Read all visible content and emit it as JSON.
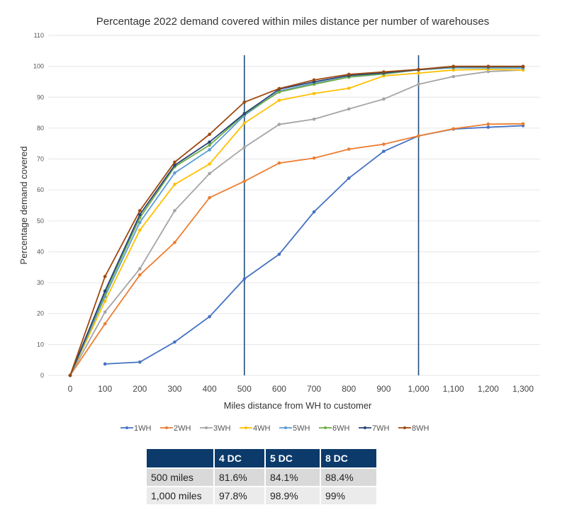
{
  "chart_data": {
    "type": "line",
    "title": "Percentage 2022 demand covered within miles distance per number of warehouses",
    "xlabel": "Miles distance from WH to customer",
    "ylabel": "Percentage demand covered",
    "x": [
      0,
      100,
      200,
      300,
      400,
      500,
      600,
      700,
      800,
      900,
      1000,
      1100,
      1200,
      1300
    ],
    "x_tick_labels": [
      "0",
      "100",
      "200",
      "300",
      "400",
      "500",
      "600",
      "700",
      "800",
      "900",
      "1,000",
      "1,100",
      "1,200",
      "1,300"
    ],
    "ylim": [
      0,
      110
    ],
    "y_ticks": [
      0,
      10,
      20,
      30,
      40,
      50,
      60,
      70,
      80,
      90,
      100,
      110
    ],
    "grid": "horizontal",
    "legend": "bottom",
    "reference_lines_x": [
      500,
      1000
    ],
    "reference_line_color": "#1f4e79",
    "series": [
      {
        "name": "1WH",
        "color": "#4472c4",
        "values": [
          null,
          3.7,
          4.3,
          10.8,
          19,
          31.2,
          39.2,
          52.9,
          63.8,
          72.5,
          77.5,
          79.7,
          80.3,
          80.8
        ]
      },
      {
        "name": "2WH",
        "color": "#ed7d31",
        "values": [
          0,
          16.7,
          32.5,
          43,
          57.5,
          62.8,
          68.7,
          70.3,
          73.2,
          74.8,
          77.5,
          79.8,
          81.3,
          81.4
        ]
      },
      {
        "name": "3WH",
        "color": "#a5a5a5",
        "values": [
          0,
          20.5,
          34.5,
          53.3,
          65.3,
          73.8,
          81.2,
          82.9,
          86.2,
          89.4,
          94.2,
          96.7,
          98.3,
          98.8
        ]
      },
      {
        "name": "4WH",
        "color": "#ffc000",
        "values": [
          0,
          24,
          47,
          61.8,
          68.4,
          81.6,
          89,
          91.2,
          92.9,
          96.9,
          97.8,
          98.8,
          99,
          98.8
        ]
      },
      {
        "name": "5WH",
        "color": "#5b9bd5",
        "values": [
          0,
          25.5,
          49.5,
          65.5,
          73,
          84.1,
          92,
          94.5,
          96.5,
          97.5,
          98.9,
          99.5,
          99.5,
          99.4
        ]
      },
      {
        "name": "6WH",
        "color": "#70ad47",
        "values": [
          0,
          26.5,
          51,
          67.5,
          74.5,
          84.5,
          91.7,
          94.2,
          96.5,
          97.6,
          98.9,
          99.8,
          99.8,
          99.8
        ]
      },
      {
        "name": "7WH",
        "color": "#264478",
        "values": [
          0,
          27.3,
          52,
          68,
          75.5,
          84.7,
          92.6,
          95,
          97,
          97.9,
          98.9,
          99.9,
          99.9,
          99.9
        ]
      },
      {
        "name": "8WH",
        "color": "#9e480e",
        "values": [
          0,
          32,
          53.3,
          69,
          78,
          88.4,
          92.8,
          95.6,
          97.4,
          98.2,
          99,
          100,
          100,
          100
        ]
      }
    ]
  },
  "table": {
    "headers": [
      "",
      "4 DC",
      "5 DC",
      "8 DC"
    ],
    "rows": [
      [
        "500 miles",
        "81.6%",
        "84.1%",
        "88.4%"
      ],
      [
        "1,000 miles",
        "97.8%",
        "98.9%",
        "99%"
      ]
    ]
  }
}
